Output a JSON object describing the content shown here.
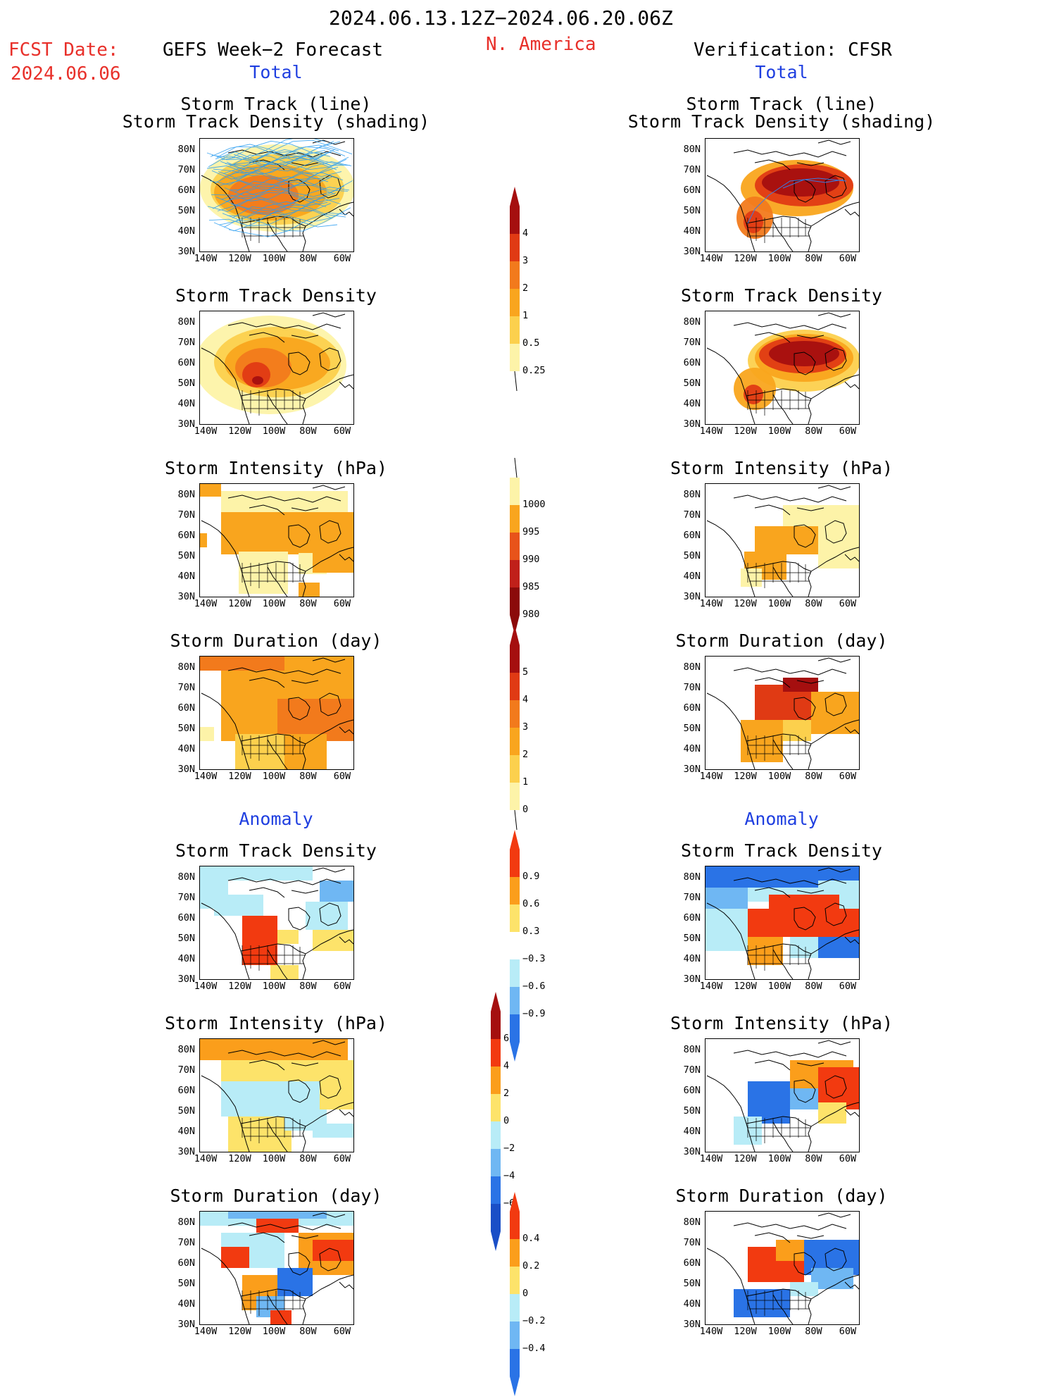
{
  "header": {
    "period": "2024.06.13.12Z−2024.06.20.06Z",
    "fcst_label": "FCST Date:",
    "fcst_date": "2024.06.06",
    "left_title": "GEFS Week−2 Forecast",
    "region": "N. America",
    "right_title": "Verification: CFSR",
    "left_section": "Total",
    "right_section": "Total"
  },
  "anomaly_sections": {
    "left": "Anomaly",
    "right": "Anomaly"
  },
  "axis": {
    "lat_ticks": [
      "80N",
      "70N",
      "60N",
      "50N",
      "40N",
      "30N"
    ],
    "lon_ticks": [
      "140W",
      "120W",
      "100W",
      "80W",
      "60W"
    ]
  },
  "panel_titles": {
    "track_line": "Storm Track (line)",
    "track_shade": "Storm Track Density (shading)",
    "density": "Storm Track Density",
    "intensity": "Storm Intensity (hPa)",
    "duration": "Storm Duration (day)"
  },
  "colorbars": [
    {
      "labels": [
        "4",
        "3",
        "2",
        "1",
        "0.5",
        "0.25"
      ],
      "colors": [
        "#a50f0f",
        "#e03a14",
        "#f27a1c",
        "#f9a51e",
        "#fcd04d",
        "#fdf3a8"
      ],
      "type": "seq"
    },
    {
      "labels": [
        "1000",
        "995",
        "990",
        "985",
        "980"
      ],
      "colors": [
        "#fdf3a8",
        "#f9a51e",
        "#e8531a",
        "#c0201a",
        "#8b0a0a"
      ],
      "type": "seq_rev"
    },
    {
      "labels": [
        "5",
        "4",
        "3",
        "2",
        "1",
        "0"
      ],
      "colors": [
        "#a50f0f",
        "#e03a14",
        "#f27a1c",
        "#f9a51e",
        "#fcd04d",
        "#fdf3a8"
      ],
      "type": "seq"
    },
    {
      "labels": [
        "0.9",
        "0.6",
        "0.3",
        "−0.3",
        "−0.6",
        "−0.9"
      ],
      "colors": [
        "#f23a10",
        "#fb9e1b",
        "#fde36a",
        "#ffffff",
        "#b8ecf7",
        "#6fb7f3",
        "#2a73e6"
      ],
      "type": "div"
    },
    {
      "labels": [
        "6",
        "4",
        "2",
        "0",
        "−2",
        "−4",
        "−6"
      ],
      "colors": [
        "#a50f0f",
        "#f23a10",
        "#fb9e1b",
        "#fde36a",
        "#b8ecf7",
        "#6fb7f3",
        "#2a73e6",
        "#1a4fc7"
      ],
      "type": "div"
    },
    {
      "labels": [
        "0.4",
        "0.2",
        "0",
        "−0.2",
        "−0.4"
      ],
      "colors": [
        "#f23a10",
        "#fb9e1b",
        "#fde36a",
        "#b8ecf7",
        "#6fb7f3",
        "#2a73e6"
      ],
      "type": "div"
    }
  ]
}
